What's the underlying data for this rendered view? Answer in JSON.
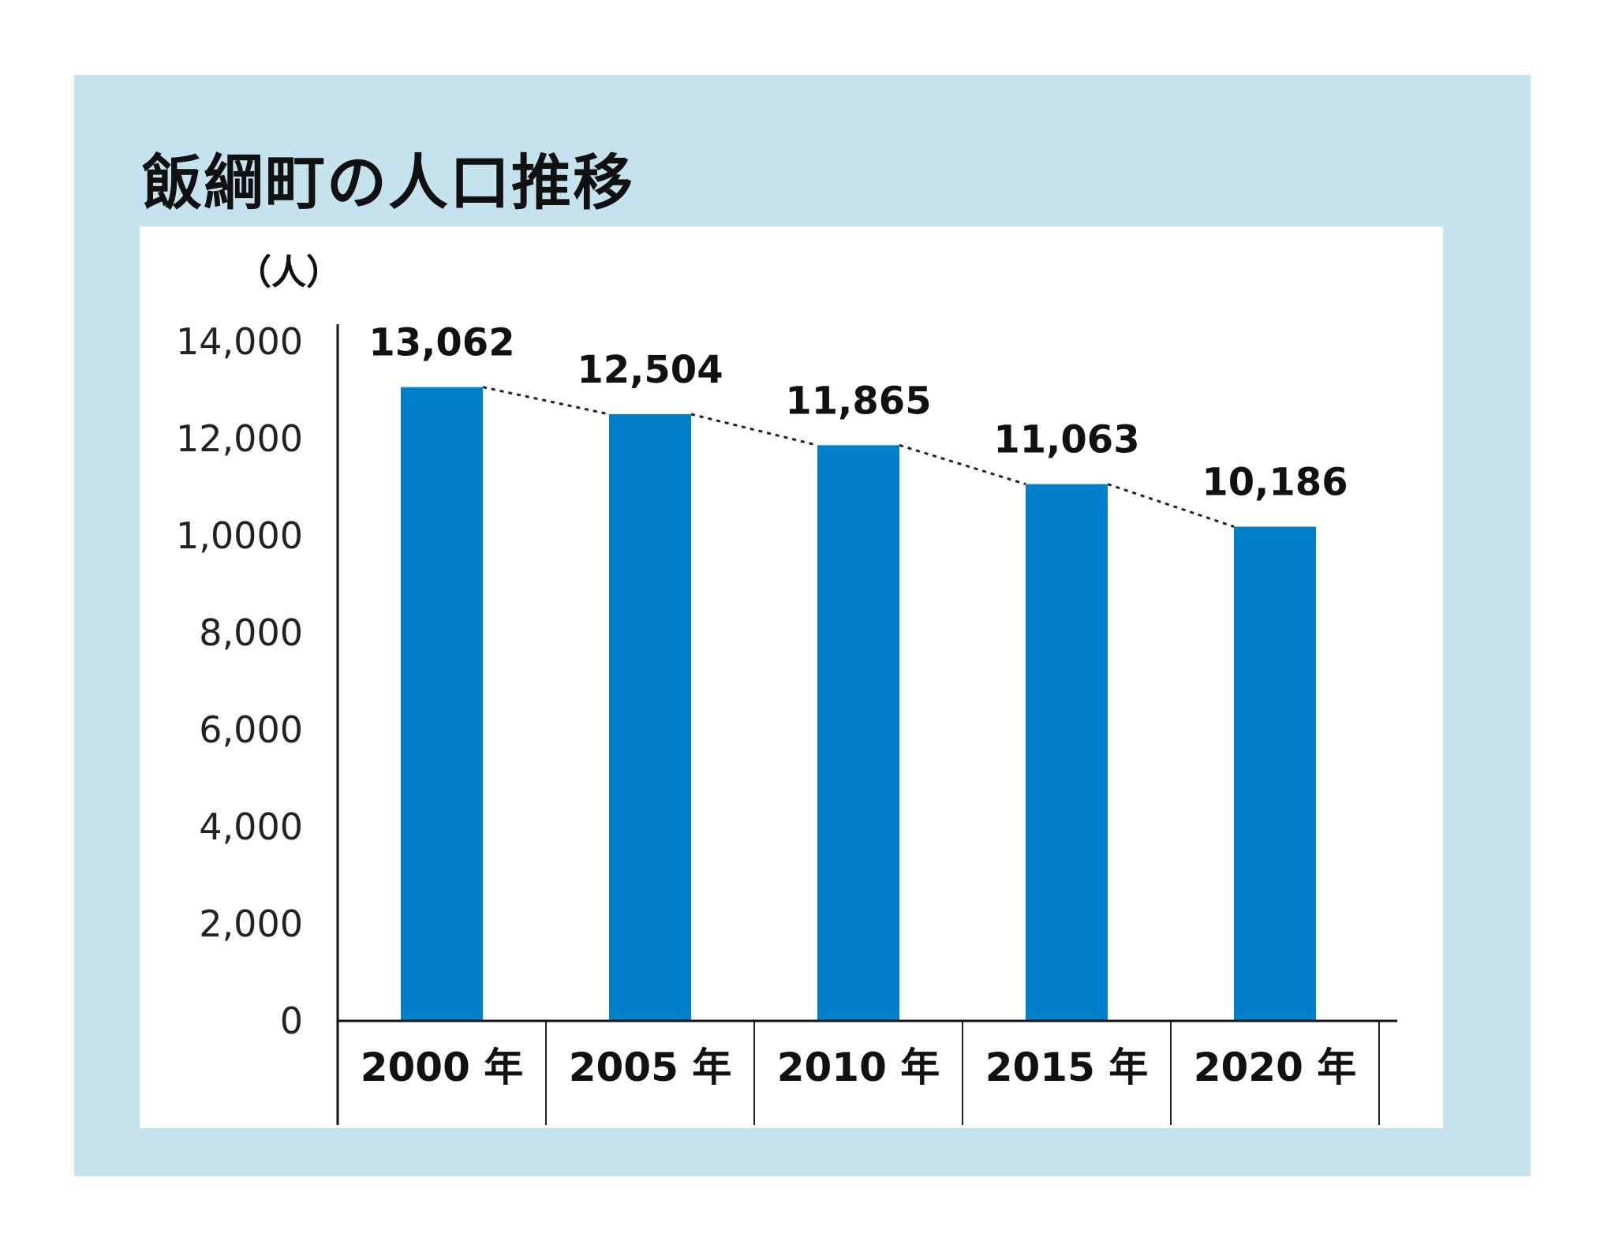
{
  "chart_data": {
    "type": "bar",
    "title": "飯綱町の人口推移",
    "ylabel": "（人）",
    "xlabel": "",
    "categories": [
      "2000 年",
      "2005 年",
      "2010 年",
      "2015 年",
      "2020 年"
    ],
    "values": [
      13062,
      12504,
      11865,
      11063,
      10186
    ],
    "value_labels": [
      "13,062",
      "12,504",
      "11,865",
      "11,063",
      "10,186"
    ],
    "ylim": [
      0,
      14000
    ],
    "yticks": [
      0,
      2000,
      4000,
      6000,
      8000,
      10000,
      12000,
      14000
    ],
    "ytick_labels": [
      "0",
      "2,000",
      "4,000",
      "6,000",
      "8,000",
      "1,0000",
      "12,000",
      "14,000"
    ],
    "trend_line": "dotted",
    "grid": false,
    "legend": "none",
    "colors": {
      "bar": "#0080c8",
      "frame": "#c5e3ee",
      "panel": "#ffffff"
    }
  }
}
